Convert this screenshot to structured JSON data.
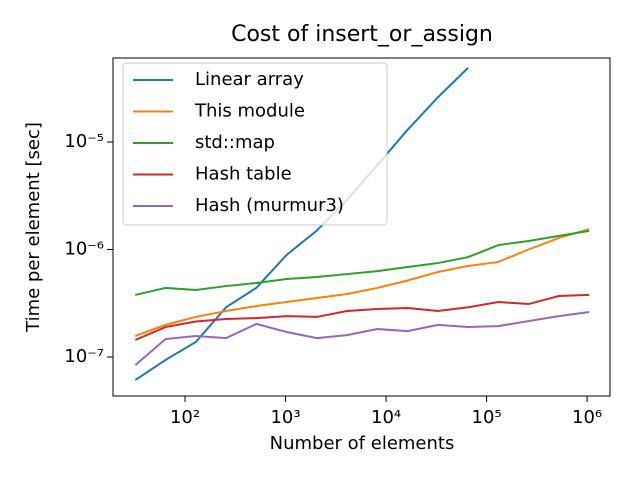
{
  "chart_data": {
    "type": "line",
    "title": "Cost of insert_or_assign",
    "x_label": "Number of elements",
    "y_label": "Time per element [sec]",
    "x": [
      32,
      64,
      128,
      256,
      512,
      1024,
      2048,
      4096,
      8192,
      16384,
      32768,
      65536,
      131072,
      262144,
      524288,
      1048576
    ],
    "series": [
      {
        "name": "Linear array",
        "color": "#1f77b4",
        "values": [
          6.1e-08,
          9.4e-08,
          1.38e-07,
          2.9e-07,
          4.4e-07,
          8.9e-07,
          1.5e-06,
          2.9e-06,
          6.1e-06,
          1.3e-05,
          2.6e-05,
          4.9e-05,
          null,
          null,
          null,
          null
        ]
      },
      {
        "name": "This module",
        "color": "#ff7f0e",
        "values": [
          1.57e-07,
          1.99e-07,
          2.36e-07,
          2.68e-07,
          2.98e-07,
          3.25e-07,
          3.54e-07,
          3.86e-07,
          4.39e-07,
          5.15e-07,
          6.18e-07,
          7.03e-07,
          7.66e-07,
          1e-06,
          1.28e-06,
          1.55e-06
        ]
      },
      {
        "name": "std::map",
        "color": "#2ca02c",
        "values": [
          3.78e-07,
          4.39e-07,
          4.2e-07,
          4.57e-07,
          4.88e-07,
          5.32e-07,
          5.55e-07,
          5.91e-07,
          6.3e-07,
          6.87e-07,
          7.48e-07,
          8.5e-07,
          1.1e-06,
          1.2e-06,
          1.34e-06,
          1.49e-06
        ]
      },
      {
        "name": "Hash table",
        "color": "#d62728",
        "values": [
          1.44e-07,
          1.9e-07,
          2.14e-07,
          2.26e-07,
          2.3e-07,
          2.4e-07,
          2.36e-07,
          2.68e-07,
          2.8e-07,
          2.86e-07,
          2.68e-07,
          2.9e-07,
          3.25e-07,
          3.11e-07,
          3.69e-07,
          3.78e-07
        ]
      },
      {
        "name": "Hash (murmur3)",
        "color": "#9467bd",
        "values": [
          8.4e-08,
          1.47e-07,
          1.57e-07,
          1.5e-07,
          2.03e-07,
          1.71e-07,
          1.5e-07,
          1.6e-07,
          1.82e-07,
          1.74e-07,
          1.99e-07,
          1.9e-07,
          1.94e-07,
          2.16e-07,
          2.4e-07,
          2.62e-07
        ]
      }
    ],
    "x_log": true,
    "y_log": true,
    "xlim": [
      19.2,
      1690000
    ],
    "ylim": [
      4.34e-08,
      6.04e-05
    ],
    "xticks": [
      {
        "value": 100,
        "label": "10²"
      },
      {
        "value": 1000,
        "label": "10³"
      },
      {
        "value": 10000,
        "label": "10⁴"
      },
      {
        "value": 100000,
        "label": "10⁵"
      },
      {
        "value": 1000000,
        "label": "10⁶"
      }
    ],
    "yticks": [
      {
        "value": 1e-07,
        "label": "10⁻⁷"
      },
      {
        "value": 1e-06,
        "label": "10⁻⁶"
      },
      {
        "value": 1e-05,
        "label": "10⁻⁵"
      }
    ],
    "legend": "upper left"
  }
}
